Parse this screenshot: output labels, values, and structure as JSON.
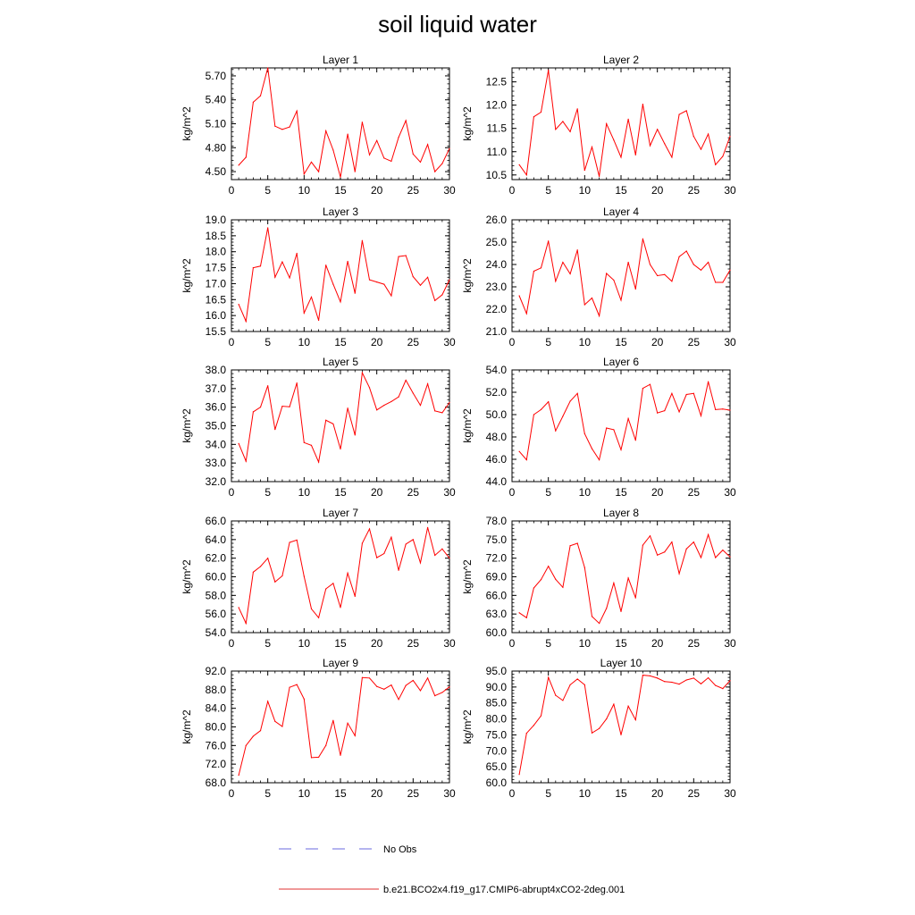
{
  "title": "soil liquid water",
  "legend": {
    "entries": [
      {
        "label": "No Obs",
        "color": "#6a6adf",
        "style": "dashed"
      },
      {
        "label": "b.e21.BCO2x4.f19_g17.CMIP6-abrupt4xCO2-2deg.001",
        "color": "#e03030",
        "style": "solid"
      }
    ]
  },
  "chart_data": [
    {
      "type": "line",
      "title": "Layer 1",
      "ylabel": "kg/m^2",
      "xlim": [
        0,
        30
      ],
      "ylim": [
        4.4,
        5.8
      ],
      "xticks": [
        "0",
        "5",
        "10",
        "15",
        "20",
        "25",
        "30"
      ],
      "yticks": [
        "4.50",
        "4.80",
        "5.10",
        "5.40",
        "5.70"
      ],
      "series": [
        {
          "name": "b.e21.BCO2x4.f19_g17.CMIP6-abrupt4xCO2-2deg.001",
          "color": "#ff0000",
          "x": [
            1,
            2,
            3,
            4,
            5,
            6,
            7,
            8,
            9,
            10,
            11,
            12,
            13,
            14,
            15,
            16,
            17,
            18,
            19,
            20,
            21,
            22,
            23,
            24,
            25,
            26,
            27,
            28,
            29,
            30
          ],
          "values": [
            4.58,
            4.68,
            5.37,
            5.45,
            5.8,
            5.07,
            5.03,
            5.06,
            5.26,
            4.47,
            4.62,
            4.5,
            5.01,
            4.77,
            4.43,
            4.97,
            4.5,
            5.12,
            4.71,
            4.89,
            4.67,
            4.63,
            4.93,
            5.14,
            4.72,
            4.62,
            4.84,
            4.5,
            4.6,
            4.79
          ]
        }
      ]
    },
    {
      "type": "line",
      "title": "Layer 2",
      "ylabel": "kg/m^2",
      "xlim": [
        0,
        30
      ],
      "ylim": [
        10.4,
        12.8
      ],
      "xticks": [
        "0",
        "5",
        "10",
        "15",
        "20",
        "25",
        "30"
      ],
      "yticks": [
        "10.5",
        "11.0",
        "11.5",
        "12.0",
        "12.5"
      ],
      "series": [
        {
          "name": "b.e21.BCO2x4.f19_g17.CMIP6-abrupt4xCO2-2deg.001",
          "color": "#ff0000",
          "x": [
            1,
            2,
            3,
            4,
            5,
            6,
            7,
            8,
            9,
            10,
            11,
            12,
            13,
            14,
            15,
            16,
            17,
            18,
            19,
            20,
            21,
            22,
            23,
            24,
            25,
            26,
            27,
            28,
            29,
            30
          ],
          "values": [
            10.72,
            10.5,
            11.75,
            11.85,
            12.75,
            11.48,
            11.65,
            11.43,
            11.92,
            10.6,
            11.1,
            10.47,
            11.6,
            11.25,
            10.88,
            11.7,
            10.93,
            12.02,
            11.13,
            11.48,
            11.17,
            10.88,
            11.8,
            11.88,
            11.33,
            11.05,
            11.38,
            10.72,
            10.9,
            11.33
          ]
        }
      ]
    },
    {
      "type": "line",
      "title": "Layer 3",
      "ylabel": "kg/m^2",
      "xlim": [
        0,
        30
      ],
      "ylim": [
        15.5,
        19.0
      ],
      "xticks": [
        "0",
        "5",
        "10",
        "15",
        "20",
        "25",
        "30"
      ],
      "yticks": [
        "15.5",
        "16.0",
        "16.5",
        "17.0",
        "17.5",
        "18.0",
        "18.5",
        "19.0"
      ],
      "series": [
        {
          "name": "b.e21.BCO2x4.f19_g17.CMIP6-abrupt4xCO2-2deg.001",
          "color": "#ff0000",
          "x": [
            1,
            2,
            3,
            4,
            5,
            6,
            7,
            8,
            9,
            10,
            11,
            12,
            13,
            14,
            15,
            16,
            17,
            18,
            19,
            20,
            21,
            22,
            23,
            24,
            25,
            26,
            27,
            28,
            29,
            30
          ],
          "values": [
            16.35,
            15.82,
            17.5,
            17.55,
            18.75,
            17.2,
            17.68,
            17.18,
            17.95,
            16.08,
            16.58,
            15.85,
            17.58,
            16.98,
            16.43,
            17.7,
            16.7,
            18.35,
            17.12,
            17.05,
            16.98,
            16.62,
            17.85,
            17.88,
            17.22,
            16.95,
            17.2,
            16.47,
            16.65,
            17.12
          ]
        }
      ]
    },
    {
      "type": "line",
      "title": "Layer 4",
      "ylabel": "kg/m^2",
      "xlim": [
        0,
        30
      ],
      "ylim": [
        21.0,
        26.0
      ],
      "xticks": [
        "0",
        "5",
        "10",
        "15",
        "20",
        "25",
        "30"
      ],
      "yticks": [
        "21.0",
        "22.0",
        "23.0",
        "24.0",
        "25.0",
        "26.0"
      ],
      "series": [
        {
          "name": "b.e21.BCO2x4.f19_g17.CMIP6-abrupt4xCO2-2deg.001",
          "color": "#ff0000",
          "x": [
            1,
            2,
            3,
            4,
            5,
            6,
            7,
            8,
            9,
            10,
            11,
            12,
            13,
            14,
            15,
            16,
            17,
            18,
            19,
            20,
            21,
            22,
            23,
            24,
            25,
            26,
            27,
            28,
            29,
            30
          ],
          "values": [
            22.6,
            21.8,
            23.7,
            23.85,
            25.05,
            23.25,
            24.1,
            23.58,
            24.65,
            22.2,
            22.5,
            21.7,
            23.6,
            23.3,
            22.4,
            24.1,
            22.9,
            25.15,
            24.0,
            23.5,
            23.55,
            23.25,
            24.35,
            24.6,
            24.0,
            23.75,
            24.1,
            23.2,
            23.2,
            23.75
          ]
        }
      ]
    },
    {
      "type": "line",
      "title": "Layer 5",
      "ylabel": "kg/m^2",
      "xlim": [
        0,
        30
      ],
      "ylim": [
        32.0,
        38.0
      ],
      "xticks": [
        "0",
        "5",
        "10",
        "15",
        "20",
        "25",
        "30"
      ],
      "yticks": [
        "32.0",
        "33.0",
        "34.0",
        "35.0",
        "36.0",
        "37.0",
        "38.0"
      ],
      "series": [
        {
          "name": "b.e21.BCO2x4.f19_g17.CMIP6-abrupt4xCO2-2deg.001",
          "color": "#ff0000",
          "x": [
            1,
            2,
            3,
            4,
            5,
            6,
            7,
            8,
            9,
            10,
            11,
            12,
            13,
            14,
            15,
            16,
            17,
            18,
            19,
            20,
            21,
            22,
            23,
            24,
            25,
            26,
            27,
            28,
            29,
            30
          ],
          "values": [
            34.05,
            33.1,
            35.75,
            36.0,
            37.15,
            34.8,
            36.05,
            36.02,
            37.3,
            34.1,
            33.95,
            33.05,
            35.3,
            35.1,
            33.75,
            35.95,
            34.5,
            37.85,
            37.05,
            35.85,
            36.1,
            36.3,
            36.55,
            37.45,
            36.75,
            36.1,
            37.25,
            35.8,
            35.7,
            36.25
          ]
        }
      ]
    },
    {
      "type": "line",
      "title": "Layer 6",
      "ylabel": "kg/m^2",
      "xlim": [
        0,
        30
      ],
      "ylim": [
        44.0,
        54.0
      ],
      "xticks": [
        "0",
        "5",
        "10",
        "15",
        "20",
        "25",
        "30"
      ],
      "yticks": [
        "44.0",
        "46.0",
        "48.0",
        "50.0",
        "52.0",
        "54.0"
      ],
      "series": [
        {
          "name": "b.e21.BCO2x4.f19_g17.CMIP6-abrupt4xCO2-2deg.001",
          "color": "#ff0000",
          "x": [
            1,
            2,
            3,
            4,
            5,
            6,
            7,
            8,
            9,
            10,
            11,
            12,
            13,
            14,
            15,
            16,
            17,
            18,
            19,
            20,
            21,
            22,
            23,
            24,
            25,
            26,
            27,
            28,
            29,
            30
          ],
          "values": [
            46.7,
            45.95,
            50.0,
            50.45,
            51.15,
            48.55,
            49.85,
            51.2,
            51.9,
            48.3,
            46.95,
            45.95,
            48.8,
            48.65,
            46.85,
            49.65,
            47.7,
            52.35,
            52.7,
            50.15,
            50.35,
            51.9,
            50.25,
            51.8,
            51.9,
            49.9,
            52.95,
            50.45,
            50.5,
            50.4
          ]
        }
      ]
    },
    {
      "type": "line",
      "title": "Layer 7",
      "ylabel": "kg/m^2",
      "xlim": [
        0,
        30
      ],
      "ylim": [
        54.0,
        66.0
      ],
      "xticks": [
        "0",
        "5",
        "10",
        "15",
        "20",
        "25",
        "30"
      ],
      "yticks": [
        "54.0",
        "56.0",
        "58.0",
        "60.0",
        "62.0",
        "64.0",
        "66.0"
      ],
      "series": [
        {
          "name": "b.e21.BCO2x4.f19_g17.CMIP6-abrupt4xCO2-2deg.001",
          "color": "#ff0000",
          "x": [
            1,
            2,
            3,
            4,
            5,
            6,
            7,
            8,
            9,
            10,
            11,
            12,
            13,
            14,
            15,
            16,
            17,
            18,
            19,
            20,
            21,
            22,
            23,
            24,
            25,
            26,
            27,
            28,
            29,
            30
          ],
          "values": [
            56.7,
            55.0,
            60.5,
            61.1,
            62.0,
            59.45,
            60.1,
            63.7,
            63.95,
            60.05,
            56.55,
            55.6,
            58.7,
            59.3,
            56.7,
            60.4,
            57.9,
            63.6,
            65.15,
            62.05,
            62.5,
            64.25,
            60.7,
            63.5,
            64.0,
            61.5,
            65.3,
            62.3,
            63.0,
            62.0
          ]
        }
      ]
    },
    {
      "type": "line",
      "title": "Layer 8",
      "ylabel": "kg/m^2",
      "xlim": [
        0,
        30
      ],
      "ylim": [
        60.0,
        78.0
      ],
      "xticks": [
        "0",
        "5",
        "10",
        "15",
        "20",
        "25",
        "30"
      ],
      "yticks": [
        "60.0",
        "63.0",
        "66.0",
        "69.0",
        "72.0",
        "75.0",
        "78.0"
      ],
      "series": [
        {
          "name": "b.e21.BCO2x4.f19_g17.CMIP6-abrupt4xCO2-2deg.001",
          "color": "#ff0000",
          "x": [
            1,
            2,
            3,
            4,
            5,
            6,
            7,
            8,
            9,
            10,
            11,
            12,
            13,
            14,
            15,
            16,
            17,
            18,
            19,
            20,
            21,
            22,
            23,
            24,
            25,
            26,
            27,
            28,
            29,
            30
          ],
          "values": [
            63.2,
            62.4,
            67.2,
            68.55,
            70.7,
            68.6,
            67.3,
            74.0,
            74.4,
            70.5,
            62.6,
            61.5,
            63.9,
            68.0,
            63.4,
            68.8,
            65.6,
            74.1,
            75.6,
            72.5,
            73.0,
            74.6,
            69.5,
            73.5,
            74.6,
            72.1,
            75.8,
            72.1,
            73.3,
            72.2
          ]
        }
      ]
    },
    {
      "type": "line",
      "title": "Layer 9",
      "ylabel": "kg/m^2",
      "xlim": [
        0,
        30
      ],
      "ylim": [
        68.0,
        92.0
      ],
      "xticks": [
        "0",
        "5",
        "10",
        "15",
        "20",
        "25",
        "30"
      ],
      "yticks": [
        "68.0",
        "72.0",
        "76.0",
        "80.0",
        "84.0",
        "88.0",
        "92.0"
      ],
      "series": [
        {
          "name": "b.e21.BCO2x4.f19_g17.CMIP6-abrupt4xCO2-2deg.001",
          "color": "#ff0000",
          "x": [
            1,
            2,
            3,
            4,
            5,
            6,
            7,
            8,
            9,
            10,
            11,
            12,
            13,
            14,
            15,
            16,
            17,
            18,
            19,
            20,
            21,
            22,
            23,
            24,
            25,
            26,
            27,
            28,
            29,
            30
          ],
          "values": [
            69.6,
            76.0,
            78.0,
            79.2,
            85.5,
            81.2,
            80.1,
            88.5,
            89.1,
            86.0,
            73.4,
            73.5,
            76.0,
            81.4,
            73.9,
            80.8,
            78.1,
            90.6,
            90.5,
            88.7,
            88.1,
            89.0,
            85.9,
            88.9,
            90.0,
            87.8,
            90.5,
            86.7,
            87.4,
            88.6
          ]
        }
      ]
    },
    {
      "type": "line",
      "title": "Layer 10",
      "ylabel": "kg/m^2",
      "xlim": [
        0,
        30
      ],
      "ylim": [
        60.0,
        95.0
      ],
      "xticks": [
        "0",
        "5",
        "10",
        "15",
        "20",
        "25",
        "30"
      ],
      "yticks": [
        "60.0",
        "65.0",
        "70.0",
        "75.0",
        "80.0",
        "85.0",
        "90.0",
        "95.0"
      ],
      "series": [
        {
          "name": "b.e21.BCO2x4.f19_g17.CMIP6-abrupt4xCO2-2deg.001",
          "color": "#ff0000",
          "x": [
            1,
            2,
            3,
            4,
            5,
            6,
            7,
            8,
            9,
            10,
            11,
            12,
            13,
            14,
            15,
            16,
            17,
            18,
            19,
            20,
            21,
            22,
            23,
            24,
            25,
            26,
            27,
            28,
            29,
            30
          ],
          "values": [
            62.6,
            75.5,
            78.0,
            81.0,
            93.0,
            87.4,
            85.8,
            90.7,
            92.5,
            90.7,
            75.6,
            77.0,
            80.0,
            84.6,
            75.0,
            84.0,
            79.7,
            93.7,
            93.5,
            92.8,
            91.7,
            91.5,
            90.9,
            92.2,
            92.8,
            91.0,
            92.9,
            90.5,
            89.5,
            92.0
          ]
        }
      ]
    }
  ]
}
